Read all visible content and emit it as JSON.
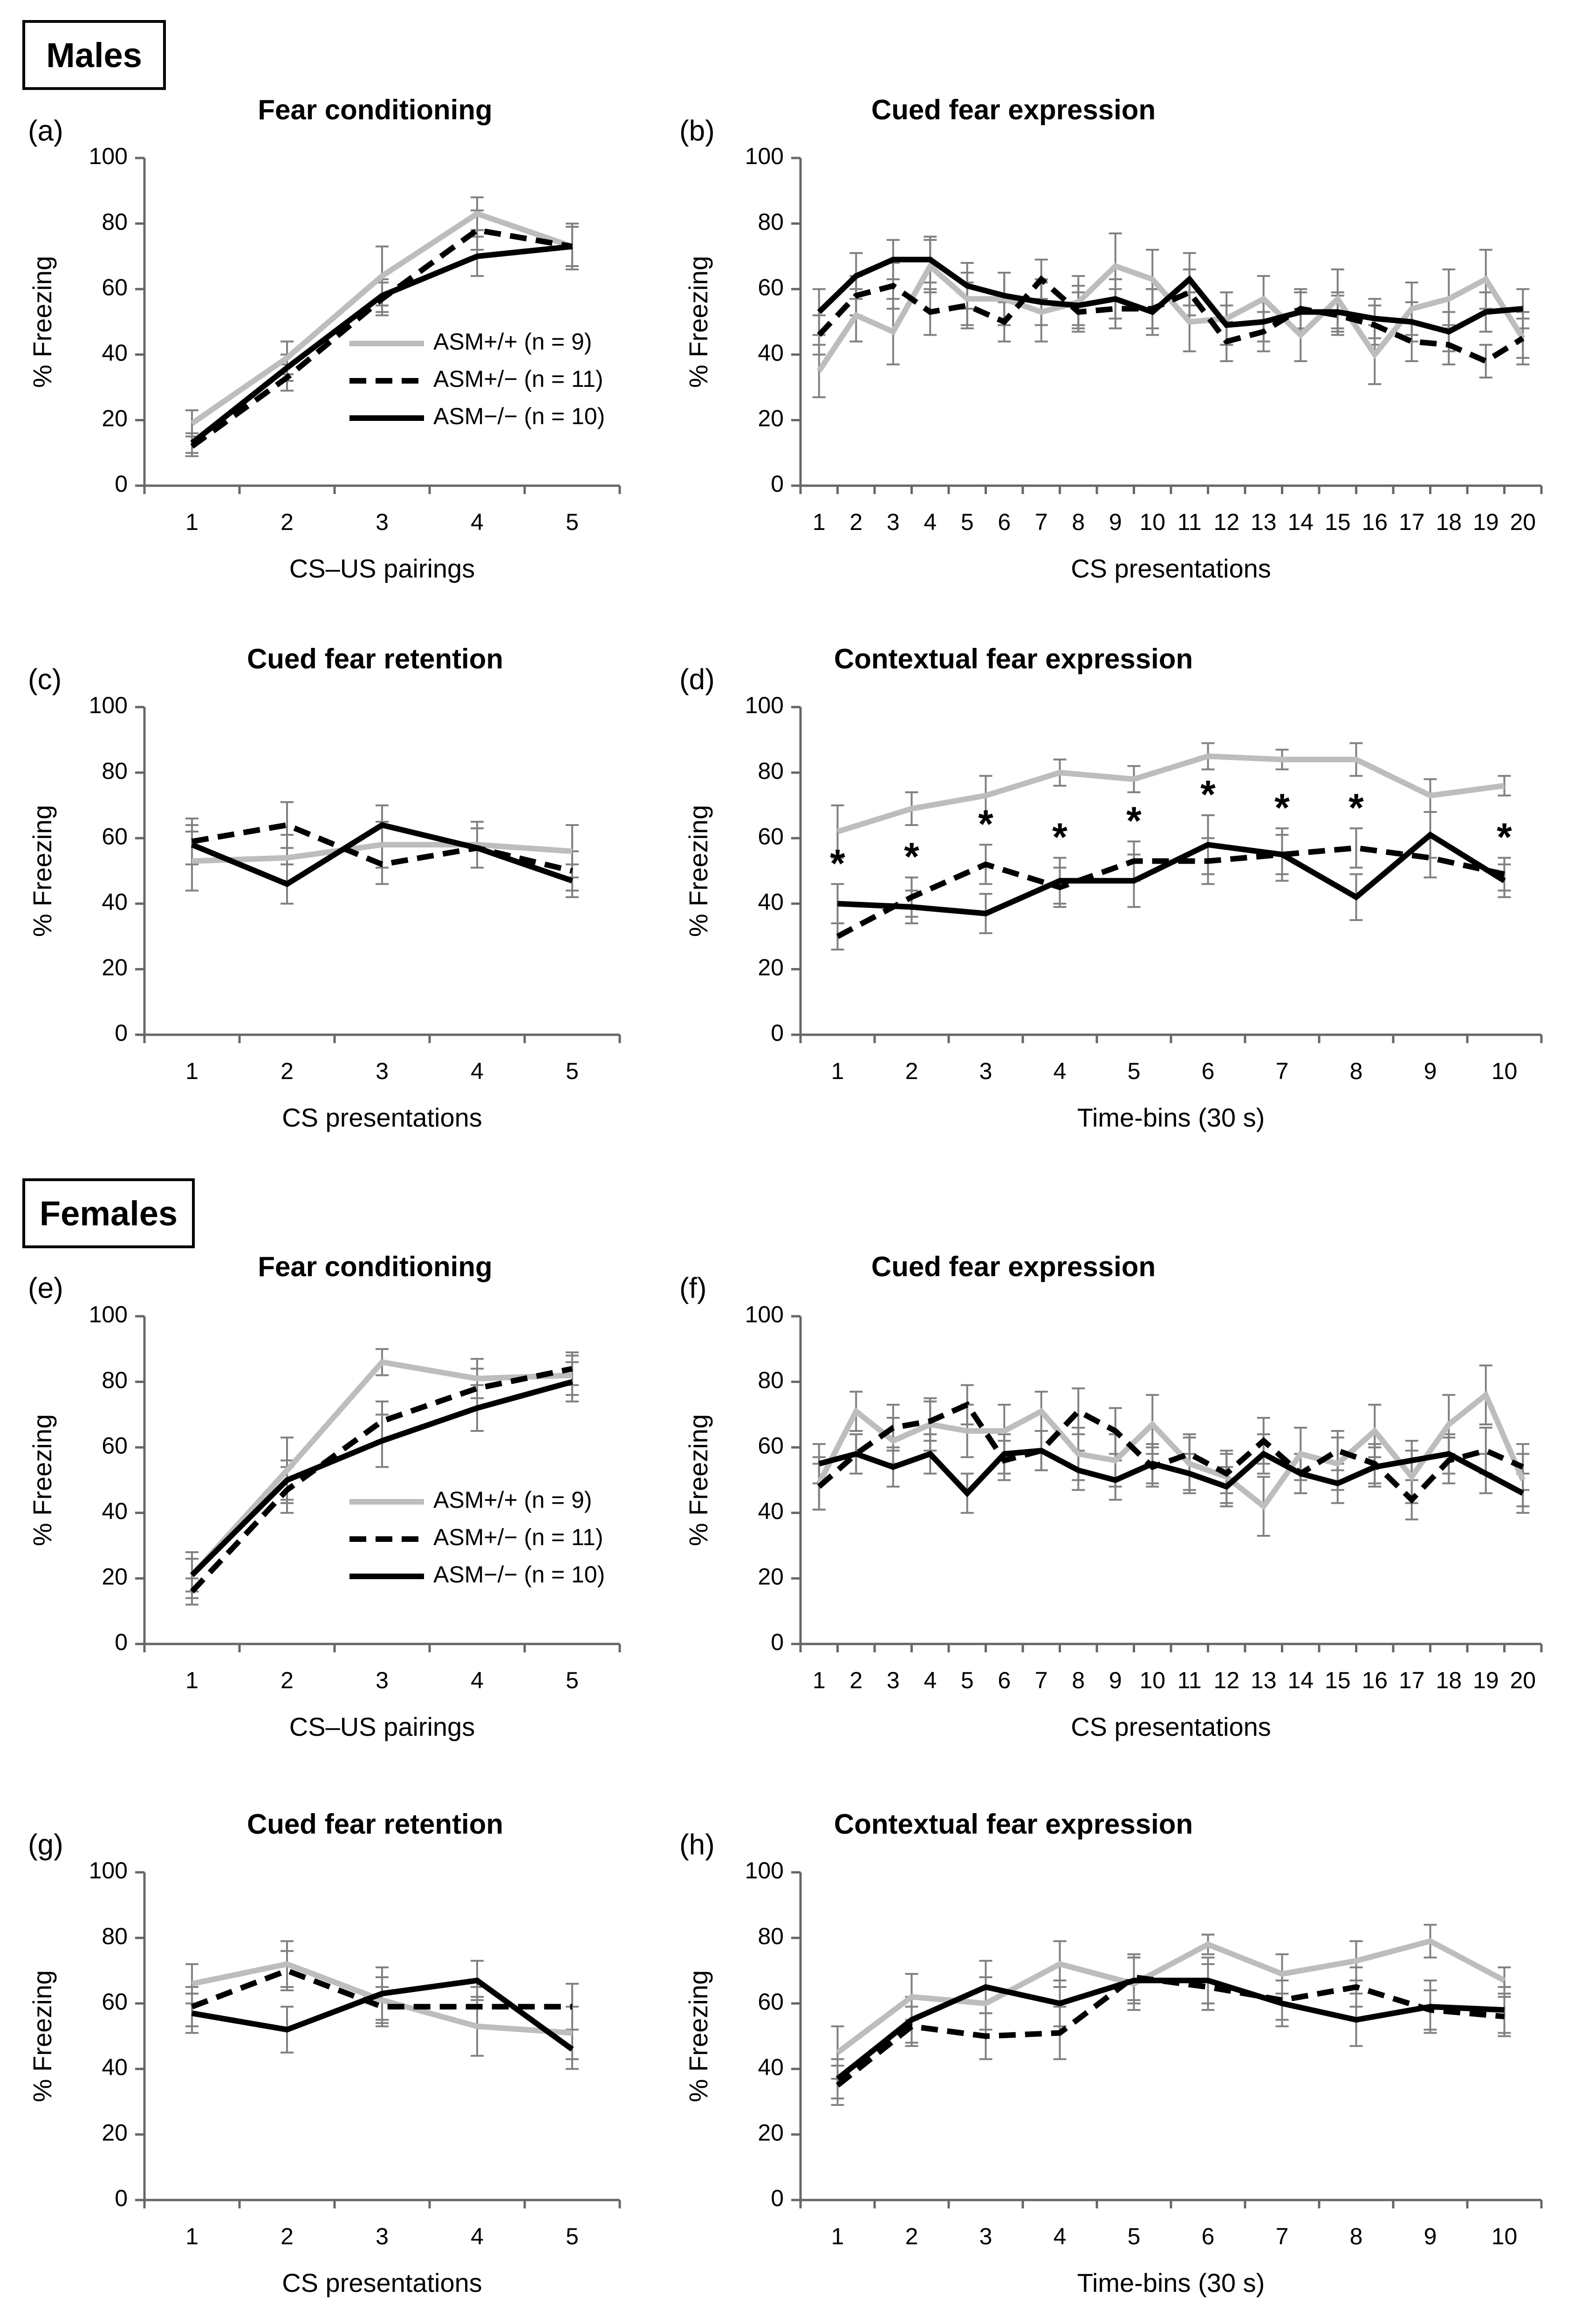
{
  "figure": {
    "section_labels": {
      "males": "Males",
      "females": "Females"
    }
  },
  "chart_data": [
    {
      "id": "a",
      "panel_label": "(a)",
      "type": "line",
      "title": "Fear conditioning",
      "xlabel": "CS–US pairings",
      "ylabel": "% Freezing",
      "ylim": [
        0,
        100
      ],
      "yticks": [
        0,
        20,
        40,
        60,
        80,
        100
      ],
      "categories": [
        "1",
        "2",
        "3",
        "4",
        "5"
      ],
      "legend": {
        "position": "lower-right",
        "entries": [
          "ASM+/+ (n = 9)",
          "ASM+/− (n = 11)",
          "ASM−/− (n = 10)"
        ]
      },
      "series": [
        {
          "name": "ASM+/+ (n = 9)",
          "style": "gray",
          "values": [
            19,
            39,
            64,
            83,
            73
          ],
          "err": [
            4,
            5,
            9,
            5,
            7
          ]
        },
        {
          "name": "ASM+/− (n = 11)",
          "style": "dashed",
          "values": [
            12,
            33,
            57,
            78,
            73
          ],
          "err": [
            3,
            4,
            5,
            6,
            6
          ]
        },
        {
          "name": "ASM−/− (n = 10)",
          "style": "solid",
          "values": [
            13,
            36,
            58,
            70,
            73
          ],
          "err": [
            3,
            4,
            5,
            6,
            6
          ]
        }
      ]
    },
    {
      "id": "b",
      "panel_label": "(b)",
      "type": "line",
      "title": "Cued fear expression",
      "xlabel": "CS presentations",
      "ylabel": "% Freezing",
      "ylim": [
        0,
        100
      ],
      "yticks": [
        0,
        20,
        40,
        60,
        80,
        100
      ],
      "categories": [
        "1",
        "2",
        "3",
        "4",
        "5",
        "6",
        "7",
        "8",
        "9",
        "10",
        "11",
        "12",
        "13",
        "14",
        "15",
        "16",
        "17",
        "18",
        "19",
        "20"
      ],
      "series": [
        {
          "name": "ASM+/+ (n = 9)",
          "style": "gray",
          "values": [
            35,
            52,
            47,
            67,
            57,
            57,
            53,
            56,
            67,
            63,
            50,
            51,
            57,
            46,
            57,
            40,
            54,
            57,
            63,
            45
          ],
          "err": [
            8,
            8,
            10,
            8,
            8,
            8,
            9,
            8,
            10,
            9,
            9,
            8,
            7,
            8,
            9,
            9,
            8,
            9,
            9,
            8
          ]
        },
        {
          "name": "ASM+/− (n = 11)",
          "style": "dashed",
          "values": [
            46,
            58,
            61,
            53,
            55,
            50,
            63,
            53,
            54,
            54,
            59,
            44,
            47,
            54,
            52,
            49,
            44,
            43,
            38,
            45
          ],
          "err": [
            6,
            6,
            7,
            7,
            7,
            6,
            6,
            6,
            6,
            6,
            7,
            6,
            6,
            6,
            6,
            6,
            6,
            6,
            5,
            6
          ]
        },
        {
          "name": "ASM−/− (n = 10)",
          "style": "solid",
          "values": [
            53,
            64,
            69,
            69,
            61,
            58,
            56,
            55,
            57,
            53,
            63,
            49,
            50,
            53,
            53,
            51,
            50,
            47,
            53,
            54
          ],
          "err": [
            7,
            7,
            6,
            7,
            7,
            7,
            7,
            6,
            6,
            7,
            8,
            6,
            6,
            6,
            6,
            6,
            6,
            6,
            6,
            6
          ]
        }
      ]
    },
    {
      "id": "c",
      "panel_label": "(c)",
      "type": "line",
      "title": "Cued fear retention",
      "xlabel": "CS presentations",
      "ylabel": "% Freezing",
      "ylim": [
        0,
        100
      ],
      "yticks": [
        0,
        20,
        40,
        60,
        80,
        100
      ],
      "categories": [
        "1",
        "2",
        "3",
        "4",
        "5"
      ],
      "series": [
        {
          "name": "ASM+/+ (n = 9)",
          "style": "gray",
          "values": [
            53,
            54,
            58,
            58,
            56
          ],
          "err": [
            9,
            7,
            7,
            7,
            8
          ]
        },
        {
          "name": "ASM+/− (n = 11)",
          "style": "dashed",
          "values": [
            59,
            64,
            52,
            57,
            50
          ],
          "err": [
            7,
            7,
            6,
            6,
            6
          ]
        },
        {
          "name": "ASM−/− (n = 10)",
          "style": "solid",
          "values": [
            58,
            46,
            64,
            57,
            47
          ],
          "err": [
            6,
            6,
            6,
            6,
            5
          ]
        }
      ]
    },
    {
      "id": "d",
      "panel_label": "(d)",
      "type": "line",
      "title": "Contextual fear expression",
      "xlabel": "Time-bins (30 s)",
      "ylabel": "% Freezing",
      "ylim": [
        0,
        100
      ],
      "yticks": [
        0,
        20,
        40,
        60,
        80,
        100
      ],
      "categories": [
        "1",
        "2",
        "3",
        "4",
        "5",
        "6",
        "7",
        "8",
        "9",
        "10"
      ],
      "significance": [
        1,
        2,
        3,
        4,
        5,
        6,
        7,
        8,
        10
      ],
      "significance_label": "*",
      "series": [
        {
          "name": "ASM+/+ (n = 9)",
          "style": "gray",
          "values": [
            62,
            69,
            73,
            80,
            78,
            85,
            84,
            84,
            73,
            76
          ],
          "err": [
            8,
            5,
            6,
            4,
            4,
            4,
            3,
            5,
            5,
            3
          ]
        },
        {
          "name": "ASM+/− (n = 11)",
          "style": "dashed",
          "values": [
            30,
            42,
            52,
            45,
            53,
            53,
            55,
            57,
            54,
            49
          ],
          "err": [
            4,
            6,
            6,
            6,
            6,
            7,
            6,
            6,
            6,
            5
          ]
        },
        {
          "name": "ASM−/− (n = 10)",
          "style": "solid",
          "values": [
            40,
            39,
            37,
            47,
            47,
            58,
            55,
            42,
            61,
            47
          ],
          "err": [
            6,
            5,
            6,
            7,
            8,
            9,
            8,
            7,
            7,
            5
          ]
        }
      ]
    },
    {
      "id": "e",
      "panel_label": "(e)",
      "type": "line",
      "title": "Fear conditioning",
      "xlabel": "CS–US pairings",
      "ylabel": "% Freezing",
      "ylim": [
        0,
        100
      ],
      "yticks": [
        0,
        20,
        40,
        60,
        80,
        100
      ],
      "categories": [
        "1",
        "2",
        "3",
        "4",
        "5"
      ],
      "legend": {
        "position": "lower-right",
        "entries": [
          "ASM+/+ (n = 9)",
          "ASM+/− (n = 11)",
          "ASM−/− (n = 10)"
        ]
      },
      "series": [
        {
          "name": "ASM+/+ (n = 9)",
          "style": "gray",
          "values": [
            21,
            53,
            86,
            81,
            82
          ],
          "err": [
            7,
            10,
            4,
            6,
            6
          ]
        },
        {
          "name": "ASM+/− (n = 11)",
          "style": "dashed",
          "values": [
            16,
            47,
            68,
            78,
            84
          ],
          "err": [
            4,
            7,
            6,
            6,
            5
          ]
        },
        {
          "name": "ASM−/− (n = 10)",
          "style": "solid",
          "values": [
            21,
            50,
            62,
            72,
            80
          ],
          "err": [
            5,
            6,
            8,
            7,
            6
          ]
        }
      ]
    },
    {
      "id": "f",
      "panel_label": "(f)",
      "type": "line",
      "title": "Cued fear expression",
      "xlabel": "CS presentations",
      "ylabel": "% Freezing",
      "ylim": [
        0,
        100
      ],
      "yticks": [
        0,
        20,
        40,
        60,
        80,
        100
      ],
      "categories": [
        "1",
        "2",
        "3",
        "4",
        "5",
        "6",
        "7",
        "8",
        "9",
        "10",
        "11",
        "12",
        "13",
        "14",
        "15",
        "16",
        "17",
        "18",
        "19",
        "20"
      ],
      "series": [
        {
          "name": "ASM+/+ (n = 9)",
          "style": "gray",
          "values": [
            49,
            71,
            62,
            67,
            65,
            65,
            71,
            58,
            56,
            67,
            55,
            51,
            42,
            58,
            55,
            65,
            51,
            67,
            76,
            50
          ],
          "err": [
            8,
            6,
            7,
            8,
            8,
            8,
            6,
            8,
            8,
            9,
            8,
            8,
            9,
            8,
            8,
            8,
            8,
            9,
            9,
            8
          ]
        },
        {
          "name": "ASM+/− (n = 11)",
          "style": "dashed",
          "values": [
            48,
            58,
            66,
            68,
            73,
            56,
            59,
            71,
            65,
            54,
            58,
            52,
            62,
            52,
            59,
            55,
            44,
            56,
            59,
            54
          ],
          "err": [
            7,
            6,
            7,
            6,
            6,
            6,
            6,
            7,
            7,
            6,
            6,
            6,
            7,
            6,
            6,
            6,
            6,
            7,
            7,
            7
          ]
        },
        {
          "name": "ASM−/− (n = 10)",
          "style": "solid",
          "values": [
            55,
            58,
            54,
            58,
            46,
            58,
            59,
            53,
            50,
            55,
            52,
            48,
            58,
            52,
            49,
            54,
            56,
            58,
            52,
            46
          ],
          "err": [
            6,
            6,
            6,
            6,
            6,
            6,
            6,
            6,
            6,
            6,
            6,
            6,
            6,
            6,
            6,
            6,
            6,
            6,
            6,
            6
          ]
        }
      ]
    },
    {
      "id": "g",
      "panel_label": "(g)",
      "type": "line",
      "title": "Cued fear retention",
      "xlabel": "CS presentations",
      "ylabel": "% Freezing",
      "ylim": [
        0,
        100
      ],
      "yticks": [
        0,
        20,
        40,
        60,
        80,
        100
      ],
      "categories": [
        "1",
        "2",
        "3",
        "4",
        "5"
      ],
      "series": [
        {
          "name": "ASM+/+ (n = 9)",
          "style": "gray",
          "values": [
            66,
            72,
            61,
            53,
            51
          ],
          "err": [
            6,
            7,
            7,
            9,
            8
          ]
        },
        {
          "name": "ASM+/− (n = 11)",
          "style": "dashed",
          "values": [
            59,
            70,
            59,
            59,
            59
          ],
          "err": [
            6,
            6,
            6,
            6,
            7
          ]
        },
        {
          "name": "ASM−/− (n = 10)",
          "style": "solid",
          "values": [
            57,
            52,
            63,
            67,
            46
          ],
          "err": [
            6,
            7,
            8,
            6,
            6
          ]
        }
      ]
    },
    {
      "id": "h",
      "panel_label": "(h)",
      "type": "line",
      "title": "Contextual fear expression",
      "xlabel": "Time-bins (30 s)",
      "ylabel": "% Freezing",
      "ylim": [
        0,
        100
      ],
      "yticks": [
        0,
        20,
        40,
        60,
        80,
        100
      ],
      "categories": [
        "1",
        "2",
        "3",
        "4",
        "5",
        "6",
        "7",
        "8",
        "9",
        "10"
      ],
      "series": [
        {
          "name": "ASM+/+ (n = 9)",
          "style": "gray",
          "values": [
            45,
            62,
            60,
            72,
            66,
            78,
            69,
            73,
            79,
            67
          ],
          "err": [
            8,
            7,
            8,
            7,
            8,
            3,
            6,
            6,
            5,
            4
          ]
        },
        {
          "name": "ASM+/− (n = 11)",
          "style": "dashed",
          "values": [
            35,
            53,
            50,
            51,
            68,
            65,
            61,
            65,
            58,
            56
          ],
          "err": [
            6,
            6,
            7,
            8,
            7,
            7,
            6,
            6,
            6,
            6
          ]
        },
        {
          "name": "ASM−/− (n = 10)",
          "style": "solid",
          "values": [
            37,
            55,
            65,
            60,
            67,
            67,
            60,
            55,
            59,
            58
          ],
          "err": [
            6,
            7,
            8,
            7,
            7,
            7,
            7,
            8,
            8,
            7
          ]
        }
      ]
    }
  ]
}
